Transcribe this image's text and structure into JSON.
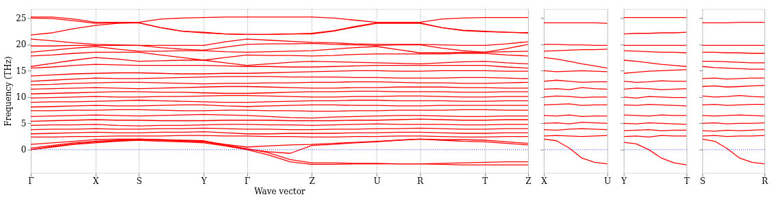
{
  "chart_data": [
    {
      "type": "line",
      "xlabel": "Wave vector",
      "ylabel": "Frequency (THz)",
      "grid": "x",
      "ylim": [
        -4.4,
        26.7
      ],
      "yticks": [
        0,
        5,
        10,
        15,
        20,
        25
      ],
      "categories": [
        "Γ",
        null,
        null,
        "X",
        null,
        "S",
        null,
        null,
        "Y",
        null,
        "Γ",
        null,
        null,
        "Z",
        null,
        null,
        "U",
        null,
        "R",
        null,
        null,
        "T",
        null,
        "Z"
      ],
      "ref_lines": [
        {
          "axis": "y",
          "value": 0,
          "color": "#0000ff",
          "line_style": "dotted"
        }
      ],
      "series": [
        {
          "color": "#ff0000",
          "values": [
            25.2,
            25.2,
            24.8,
            24.2,
            24.2,
            24.2,
            24.8,
            25.0,
            25.1,
            25.2,
            25.2,
            25.2,
            25.2,
            25.2,
            25.0,
            24.6,
            24.2,
            24.2,
            24.2,
            24.8,
            25.0,
            25.1,
            25.1,
            25.1
          ]
        },
        {
          "color": "#ff0000",
          "values": [
            25.0,
            24.9,
            24.5,
            24.0,
            24.1,
            24.1,
            23.2,
            22.5,
            22.2,
            22.0,
            21.9,
            21.9,
            22.0,
            22.1,
            22.6,
            23.4,
            24.1,
            24.1,
            24.1,
            23.2,
            22.6,
            22.4,
            22.3,
            22.2
          ]
        },
        {
          "color": "#ff0000",
          "values": [
            21.8,
            22.2,
            23.0,
            23.6,
            24.0,
            24.1,
            23.2,
            22.5,
            22.3,
            22.0,
            21.9,
            21.9,
            22.0,
            22.0,
            22.5,
            23.3,
            24.0,
            24.0,
            24.0,
            23.2,
            22.7,
            22.5,
            22.3,
            22.2
          ]
        },
        {
          "color": "#ff0000",
          "values": [
            21.0,
            20.7,
            20.3,
            20.0,
            19.9,
            19.8,
            19.8,
            19.8,
            19.8,
            20.5,
            21.0,
            20.8,
            20.6,
            20.4,
            20.3,
            20.1,
            20.0,
            20.0,
            20.0,
            19.9,
            19.8,
            19.8,
            20.1,
            20.5
          ]
        },
        {
          "color": "#ff0000",
          "values": [
            19.7,
            19.7,
            19.8,
            19.8,
            19.8,
            19.8,
            19.4,
            19.1,
            18.9,
            19.5,
            20.0,
            20.1,
            20.1,
            20.2,
            20.0,
            19.9,
            19.8,
            19.9,
            19.9,
            19.3,
            18.8,
            18.5,
            19.2,
            20.0
          ]
        },
        {
          "color": "#ff0000",
          "values": [
            18.5,
            18.9,
            19.3,
            19.6,
            19.1,
            18.7,
            18.7,
            18.8,
            18.8,
            18.6,
            18.5,
            18.6,
            18.7,
            18.8,
            19.1,
            19.4,
            19.6,
            19.0,
            18.4,
            18.4,
            18.5,
            18.5,
            18.6,
            18.7
          ]
        },
        {
          "color": "#ff0000",
          "values": [
            17.8,
            18.0,
            18.3,
            18.5,
            18.5,
            18.5,
            18.0,
            17.5,
            17.0,
            17.5,
            18.0,
            17.9,
            17.9,
            17.8,
            17.9,
            18.1,
            18.2,
            18.2,
            18.2,
            18.2,
            18.3,
            18.3,
            18.0,
            17.8
          ]
        },
        {
          "color": "#ff0000",
          "values": [
            15.8,
            16.4,
            17.0,
            17.5,
            17.2,
            16.8,
            16.9,
            17.0,
            17.0,
            16.5,
            16.0,
            16.3,
            16.6,
            16.8,
            16.7,
            16.6,
            16.5,
            16.4,
            16.3,
            16.5,
            16.7,
            16.8,
            16.5,
            16.3
          ]
        },
        {
          "color": "#ff0000",
          "values": [
            15.5,
            15.7,
            16.0,
            16.2,
            16.1,
            16.0,
            16.0,
            16.0,
            16.0,
            15.9,
            15.8,
            15.8,
            15.7,
            15.7,
            15.8,
            15.9,
            16.0,
            16.0,
            16.0,
            16.0,
            16.0,
            16.0,
            15.7,
            15.5
          ]
        },
        {
          "color": "#ff0000",
          "values": [
            14.0,
            14.2,
            14.4,
            14.5,
            14.6,
            14.6,
            14.5,
            14.4,
            14.4,
            14.5,
            14.5,
            14.6,
            14.7,
            14.8,
            14.9,
            15.0,
            15.0,
            14.9,
            14.9,
            15.0,
            15.0,
            15.0,
            14.9,
            14.9
          ]
        },
        {
          "color": "#ff0000",
          "values": [
            13.0,
            13.2,
            13.4,
            13.6,
            13.5,
            13.5,
            13.6,
            13.7,
            13.8,
            13.9,
            13.9,
            13.9,
            13.8,
            13.8,
            13.8,
            13.7,
            13.7,
            13.6,
            13.6,
            13.6,
            13.7,
            13.7,
            13.6,
            13.5
          ]
        },
        {
          "color": "#ff0000",
          "values": [
            12.3,
            12.4,
            12.6,
            12.7,
            12.8,
            12.8,
            12.7,
            12.6,
            12.5,
            12.6,
            12.6,
            12.7,
            12.7,
            12.8,
            12.8,
            12.9,
            12.9,
            12.8,
            12.7,
            12.7,
            12.6,
            12.6,
            12.7,
            12.8
          ]
        },
        {
          "color": "#ff0000",
          "values": [
            11.5,
            11.6,
            11.7,
            11.8,
            11.7,
            11.6,
            11.7,
            11.8,
            11.9,
            12.0,
            12.0,
            11.9,
            11.8,
            11.7,
            11.7,
            11.8,
            11.8,
            11.9,
            11.9,
            11.9,
            11.8,
            11.8,
            11.7,
            11.7
          ]
        },
        {
          "color": "#ff0000",
          "values": [
            10.6,
            10.7,
            10.8,
            10.9,
            11.0,
            11.0,
            10.9,
            10.9,
            10.8,
            10.7,
            10.7,
            10.8,
            10.9,
            11.0,
            11.0,
            11.1,
            11.1,
            11.0,
            11.0,
            11.0,
            10.9,
            10.9,
            11.0,
            11.0
          ]
        },
        {
          "color": "#ff0000",
          "values": [
            9.8,
            9.9,
            10.0,
            10.1,
            10.0,
            10.0,
            10.1,
            10.1,
            10.2,
            10.3,
            10.3,
            10.2,
            10.1,
            10.0,
            10.0,
            10.1,
            10.1,
            10.2,
            10.2,
            10.1,
            10.0,
            10.0,
            10.1,
            10.1
          ]
        },
        {
          "color": "#ff0000",
          "values": [
            9.0,
            9.1,
            9.1,
            9.2,
            9.3,
            9.4,
            9.3,
            9.2,
            9.1,
            9.0,
            9.0,
            9.1,
            9.2,
            9.3,
            9.3,
            9.4,
            9.4,
            9.3,
            9.3,
            9.3,
            9.2,
            9.2,
            9.3,
            9.3
          ]
        },
        {
          "color": "#ff0000",
          "values": [
            8.1,
            8.2,
            8.3,
            8.4,
            8.3,
            8.3,
            8.4,
            8.5,
            8.5,
            8.3,
            8.2,
            8.3,
            8.4,
            8.5,
            8.5,
            8.4,
            8.4,
            8.3,
            8.3,
            8.4,
            8.4,
            8.4,
            8.4,
            8.4
          ]
        },
        {
          "color": "#ff0000",
          "values": [
            7.4,
            7.4,
            7.5,
            7.5,
            7.6,
            7.6,
            7.5,
            7.4,
            7.4,
            7.5,
            7.5,
            7.4,
            7.4,
            7.3,
            7.3,
            7.4,
            7.4,
            7.5,
            7.5,
            7.5,
            7.6,
            7.6,
            7.5,
            7.5
          ]
        },
        {
          "color": "#ff0000",
          "values": [
            6.3,
            6.4,
            6.5,
            6.6,
            6.5,
            6.4,
            6.5,
            6.6,
            6.7,
            6.6,
            6.5,
            6.3,
            6.1,
            6.0,
            6.2,
            6.3,
            6.4,
            6.5,
            6.5,
            6.4,
            6.3,
            6.3,
            6.4,
            6.4
          ]
        },
        {
          "color": "#ff0000",
          "values": [
            5.4,
            5.5,
            5.6,
            5.7,
            5.6,
            5.6,
            5.5,
            5.5,
            5.5,
            5.6,
            5.6,
            5.6,
            5.5,
            5.5,
            5.5,
            5.6,
            5.6,
            5.7,
            5.8,
            5.7,
            5.6,
            5.6,
            5.7,
            5.7
          ]
        },
        {
          "color": "#ff0000",
          "values": [
            4.6,
            4.7,
            4.7,
            4.8,
            4.6,
            4.5,
            4.6,
            4.6,
            4.7,
            4.8,
            4.8,
            4.7,
            4.7,
            4.6,
            4.7,
            4.8,
            4.9,
            4.8,
            4.8,
            4.8,
            4.7,
            4.7,
            4.8,
            4.8
          ]
        },
        {
          "color": "#ff0000",
          "values": [
            3.8,
            3.9,
            3.9,
            4.0,
            3.9,
            3.9,
            4.0,
            4.0,
            4.1,
            4.0,
            3.9,
            3.9,
            3.8,
            3.8,
            3.9,
            3.9,
            4.0,
            4.0,
            4.1,
            4.0,
            3.9,
            3.9,
            4.0,
            4.0
          ]
        },
        {
          "color": "#ff0000",
          "values": [
            3.0,
            3.1,
            3.2,
            3.3,
            3.2,
            3.2,
            3.3,
            3.3,
            3.4,
            3.2,
            3.0,
            3.0,
            3.1,
            3.1,
            3.1,
            3.2,
            3.2,
            3.3,
            3.3,
            3.2,
            3.1,
            3.1,
            3.2,
            3.2
          ]
        },
        {
          "color": "#ff0000",
          "values": [
            2.4,
            2.4,
            2.5,
            2.5,
            2.6,
            2.6,
            2.6,
            2.7,
            2.7,
            2.6,
            2.6,
            2.5,
            2.5,
            2.4,
            2.4,
            2.5,
            2.5,
            2.6,
            2.6,
            2.5,
            2.4,
            2.4,
            2.5,
            2.5
          ]
        },
        {
          "color": "#ff0000",
          "values": [
            1.0,
            1.3,
            1.6,
            1.9,
            2.0,
            2.0,
            1.9,
            1.7,
            1.6,
            1.0,
            0.5,
            0.7,
            0.9,
            1.0,
            1.2,
            1.4,
            1.6,
            1.8,
            2.0,
            1.9,
            1.9,
            1.8,
            1.5,
            1.2
          ]
        },
        {
          "color": "#ff0000",
          "values": [
            0,
            0.5,
            1.0,
            1.3,
            1.6,
            1.8,
            1.6,
            1.5,
            1.3,
            0.7,
            0,
            -1.0,
            -2.3,
            -2.8,
            -2.8,
            -2.7,
            -2.7,
            -2.7,
            -2.7,
            -2.6,
            -2.5,
            -2.4,
            -2.3,
            -2.3
          ]
        },
        {
          "color": "#ff0000",
          "values": [
            0,
            0.6,
            1.1,
            1.5,
            1.7,
            1.9,
            1.8,
            1.6,
            1.5,
            0.8,
            0.2,
            -0.6,
            -1.9,
            -2.5,
            -2.5,
            -2.6,
            -2.6,
            -2.7,
            -2.7,
            -2.8,
            -2.9,
            -2.9,
            -2.9,
            -2.9
          ]
        },
        {
          "color": "#ff0000",
          "values": [
            0.3,
            0.8,
            1.3,
            1.6,
            1.8,
            2.0,
            1.9,
            1.8,
            1.7,
            0.9,
            0.1,
            -0.4,
            -0.7,
            0.8,
            1.0,
            1.3,
            1.5,
            1.8,
            2.0,
            1.8,
            1.6,
            1.5,
            1.2,
            0.9
          ]
        }
      ]
    },
    {
      "type": "line",
      "tick_labels": "x",
      "grid": "x",
      "ylim": [
        -4.4,
        26.7
      ],
      "yticks": [
        0,
        5,
        10,
        15,
        20,
        25
      ],
      "categories": [
        "X",
        null,
        null,
        null,
        null,
        "U"
      ],
      "ref_lines": [
        {
          "axis": "y",
          "value": 0,
          "color": "#0000ff",
          "line_style": "dotted"
        }
      ],
      "series": [
        {
          "color": "#ff0000",
          "values": [
            24.1,
            24.1,
            24.1,
            24.1,
            24.1,
            24.0
          ]
        },
        {
          "color": "#ff0000",
          "values": [
            20.0,
            20.0,
            19.9,
            19.9,
            19.8,
            19.8
          ]
        },
        {
          "color": "#ff0000",
          "values": [
            18.7,
            18.8,
            18.9,
            19.0,
            19.0,
            19.1
          ]
        },
        {
          "color": "#ff0000",
          "values": [
            17.5,
            17.2,
            16.8,
            16.3,
            15.9,
            15.5
          ]
        },
        {
          "color": "#ff0000",
          "values": [
            15.0,
            14.8,
            14.9,
            15.0,
            14.9,
            14.8
          ]
        },
        {
          "color": "#ff0000",
          "values": [
            13.0,
            13.2,
            13.0,
            12.8,
            12.9,
            12.9
          ]
        },
        {
          "color": "#ff0000",
          "values": [
            11.5,
            11.6,
            11.4,
            11.8,
            11.6,
            11.5
          ]
        },
        {
          "color": "#ff0000",
          "values": [
            10.0,
            10.2,
            10.1,
            9.9,
            10.0,
            10.0
          ]
        },
        {
          "color": "#ff0000",
          "values": [
            8.5,
            8.6,
            8.7,
            8.4,
            8.5,
            8.5
          ]
        },
        {
          "color": "#ff0000",
          "values": [
            6.5,
            6.4,
            6.6,
            6.3,
            6.4,
            6.4
          ]
        },
        {
          "color": "#ff0000",
          "values": [
            5.0,
            5.1,
            4.9,
            5.2,
            5.1,
            5.0
          ]
        },
        {
          "color": "#ff0000",
          "values": [
            3.8,
            3.7,
            3.9,
            4.0,
            3.9,
            3.8
          ]
        },
        {
          "color": "#ff0000",
          "values": [
            2.6,
            2.7,
            2.6,
            2.5,
            2.6,
            2.7
          ]
        },
        {
          "color": "#ff0000",
          "values": [
            2.0,
            1.7,
            0.3,
            -1.6,
            -2.4,
            -2.7
          ]
        }
      ]
    },
    {
      "type": "line",
      "tick_labels": "x",
      "grid": "x",
      "ylim": [
        -4.4,
        26.7
      ],
      "yticks": [
        0,
        5,
        10,
        15,
        20,
        25
      ],
      "categories": [
        "Y",
        null,
        null,
        null,
        null,
        "T"
      ],
      "ref_lines": [
        {
          "axis": "y",
          "value": 0,
          "color": "#0000ff",
          "line_style": "dotted"
        }
      ],
      "series": [
        {
          "color": "#ff0000",
          "values": [
            25.1,
            25.1,
            25.1,
            25.1,
            25.1,
            25.1
          ]
        },
        {
          "color": "#ff0000",
          "values": [
            22.0,
            22.1,
            22.1,
            22.2,
            22.2,
            22.3
          ]
        },
        {
          "color": "#ff0000",
          "values": [
            19.8,
            19.8,
            19.8,
            19.8,
            19.8,
            19.8
          ]
        },
        {
          "color": "#ff0000",
          "values": [
            18.8,
            18.7,
            18.6,
            18.5,
            18.5,
            18.4
          ]
        },
        {
          "color": "#ff0000",
          "values": [
            17.0,
            16.8,
            16.5,
            16.2,
            16.0,
            15.8
          ]
        },
        {
          "color": "#ff0000",
          "values": [
            14.5,
            14.7,
            14.9,
            15.0,
            15.1,
            15.2
          ]
        },
        {
          "color": "#ff0000",
          "values": [
            13.0,
            12.8,
            12.9,
            13.1,
            13.0,
            13.0
          ]
        },
        {
          "color": "#ff0000",
          "values": [
            11.5,
            11.7,
            11.6,
            11.4,
            11.5,
            11.6
          ]
        },
        {
          "color": "#ff0000",
          "values": [
            10.0,
            9.8,
            10.1,
            10.0,
            9.9,
            9.9
          ]
        },
        {
          "color": "#ff0000",
          "values": [
            8.5,
            8.4,
            8.6,
            8.5,
            8.4,
            8.3
          ]
        },
        {
          "color": "#ff0000",
          "values": [
            6.6,
            6.5,
            6.4,
            6.6,
            6.5,
            6.5
          ]
        },
        {
          "color": "#ff0000",
          "values": [
            5.0,
            4.9,
            5.1,
            5.0,
            4.9,
            4.8
          ]
        },
        {
          "color": "#ff0000",
          "values": [
            3.6,
            3.7,
            3.8,
            3.6,
            3.7,
            3.7
          ]
        },
        {
          "color": "#ff0000",
          "values": [
            2.5,
            2.6,
            2.4,
            2.7,
            2.6,
            2.6
          ]
        },
        {
          "color": "#ff0000",
          "values": [
            1.4,
            1.1,
            0.0,
            -1.6,
            -2.5,
            -2.9
          ]
        }
      ]
    },
    {
      "type": "line",
      "tick_labels": "x",
      "grid": "x",
      "ylim": [
        -4.4,
        26.7
      ],
      "yticks": [
        0,
        5,
        10,
        15,
        20,
        25
      ],
      "categories": [
        "S",
        null,
        null,
        null,
        null,
        "R"
      ],
      "ref_lines": [
        {
          "axis": "y",
          "value": 0,
          "color": "#0000ff",
          "line_style": "dotted"
        }
      ],
      "series": [
        {
          "color": "#ff0000",
          "values": [
            24.1,
            24.1,
            24.1,
            24.2,
            24.2,
            24.2
          ]
        },
        {
          "color": "#ff0000",
          "values": [
            19.8,
            19.8,
            19.8,
            19.8,
            19.8,
            19.8
          ]
        },
        {
          "color": "#ff0000",
          "values": [
            18.5,
            18.5,
            18.4,
            18.4,
            18.3,
            18.3
          ]
        },
        {
          "color": "#ff0000",
          "values": [
            16.8,
            16.8,
            16.7,
            16.6,
            16.5,
            16.5
          ]
        },
        {
          "color": "#ff0000",
          "values": [
            15.8,
            15.6,
            15.5,
            15.4,
            15.3,
            15.3
          ]
        },
        {
          "color": "#ff0000",
          "values": [
            13.5,
            13.6,
            13.4,
            13.5,
            13.6,
            13.6
          ]
        },
        {
          "color": "#ff0000",
          "values": [
            12.0,
            12.1,
            11.9,
            12.0,
            12.1,
            12.2
          ]
        },
        {
          "color": "#ff0000",
          "values": [
            10.2,
            10.0,
            10.1,
            10.3,
            10.1,
            10.0
          ]
        },
        {
          "color": "#ff0000",
          "values": [
            8.5,
            8.6,
            8.4,
            8.5,
            8.6,
            8.6
          ]
        },
        {
          "color": "#ff0000",
          "values": [
            6.5,
            6.4,
            6.5,
            6.6,
            6.5,
            6.4
          ]
        },
        {
          "color": "#ff0000",
          "values": [
            5.0,
            5.1,
            4.9,
            5.0,
            5.0,
            5.1
          ]
        },
        {
          "color": "#ff0000",
          "values": [
            3.6,
            3.5,
            3.7,
            3.6,
            3.7,
            3.8
          ]
        },
        {
          "color": "#ff0000",
          "values": [
            2.6,
            2.7,
            2.5,
            2.6,
            2.6,
            2.7
          ]
        },
        {
          "color": "#ff0000",
          "values": [
            2.0,
            1.6,
            0.2,
            -1.6,
            -2.4,
            -2.7
          ]
        }
      ]
    }
  ]
}
